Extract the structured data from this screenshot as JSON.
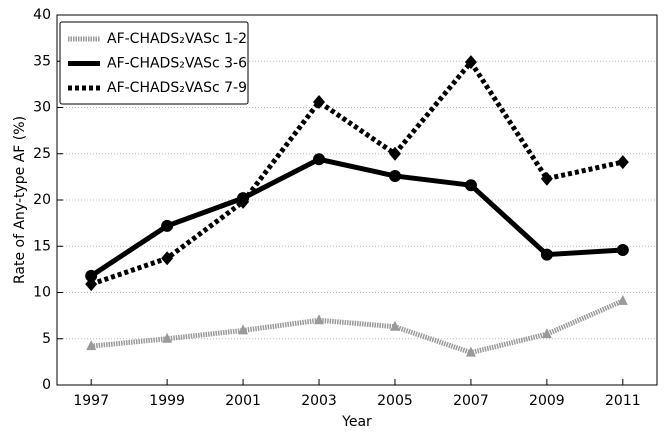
{
  "chart_data": {
    "type": "line",
    "xlabel": "Year",
    "ylabel": "Rate of Any-type AF (%)",
    "x": [
      1997,
      1999,
      2001,
      2003,
      2005,
      2007,
      2009,
      2011
    ],
    "xlim": [
      1996.1,
      2011.9
    ],
    "xticks": [
      1997,
      1999,
      2001,
      2003,
      2005,
      2007,
      2009,
      2011
    ],
    "ylim": [
      0,
      40
    ],
    "yticks": [
      0,
      5,
      10,
      15,
      20,
      25,
      30,
      35,
      40
    ],
    "grid": true,
    "legend": "upper left",
    "series": [
      {
        "name": "AF-CHADS₂VASc 1-2",
        "color": "#9a9a9a",
        "linestyle": "hatched",
        "marker": "triangle",
        "values": [
          4.2,
          5.0,
          5.9,
          7.0,
          6.3,
          3.5,
          5.5,
          9.1
        ]
      },
      {
        "name": "AF-CHADS₂VASc 3-6",
        "color": "#000000",
        "linestyle": "solid",
        "marker": "circle",
        "values": [
          11.8,
          17.2,
          20.2,
          24.4,
          22.6,
          21.6,
          14.1,
          14.6
        ]
      },
      {
        "name": "AF-CHADS₂VASc 7-9",
        "color": "#000000",
        "linestyle": "dotted",
        "marker": "diamond",
        "values": [
          10.9,
          13.7,
          19.8,
          30.6,
          25.0,
          34.9,
          22.3,
          24.1
        ]
      }
    ]
  }
}
